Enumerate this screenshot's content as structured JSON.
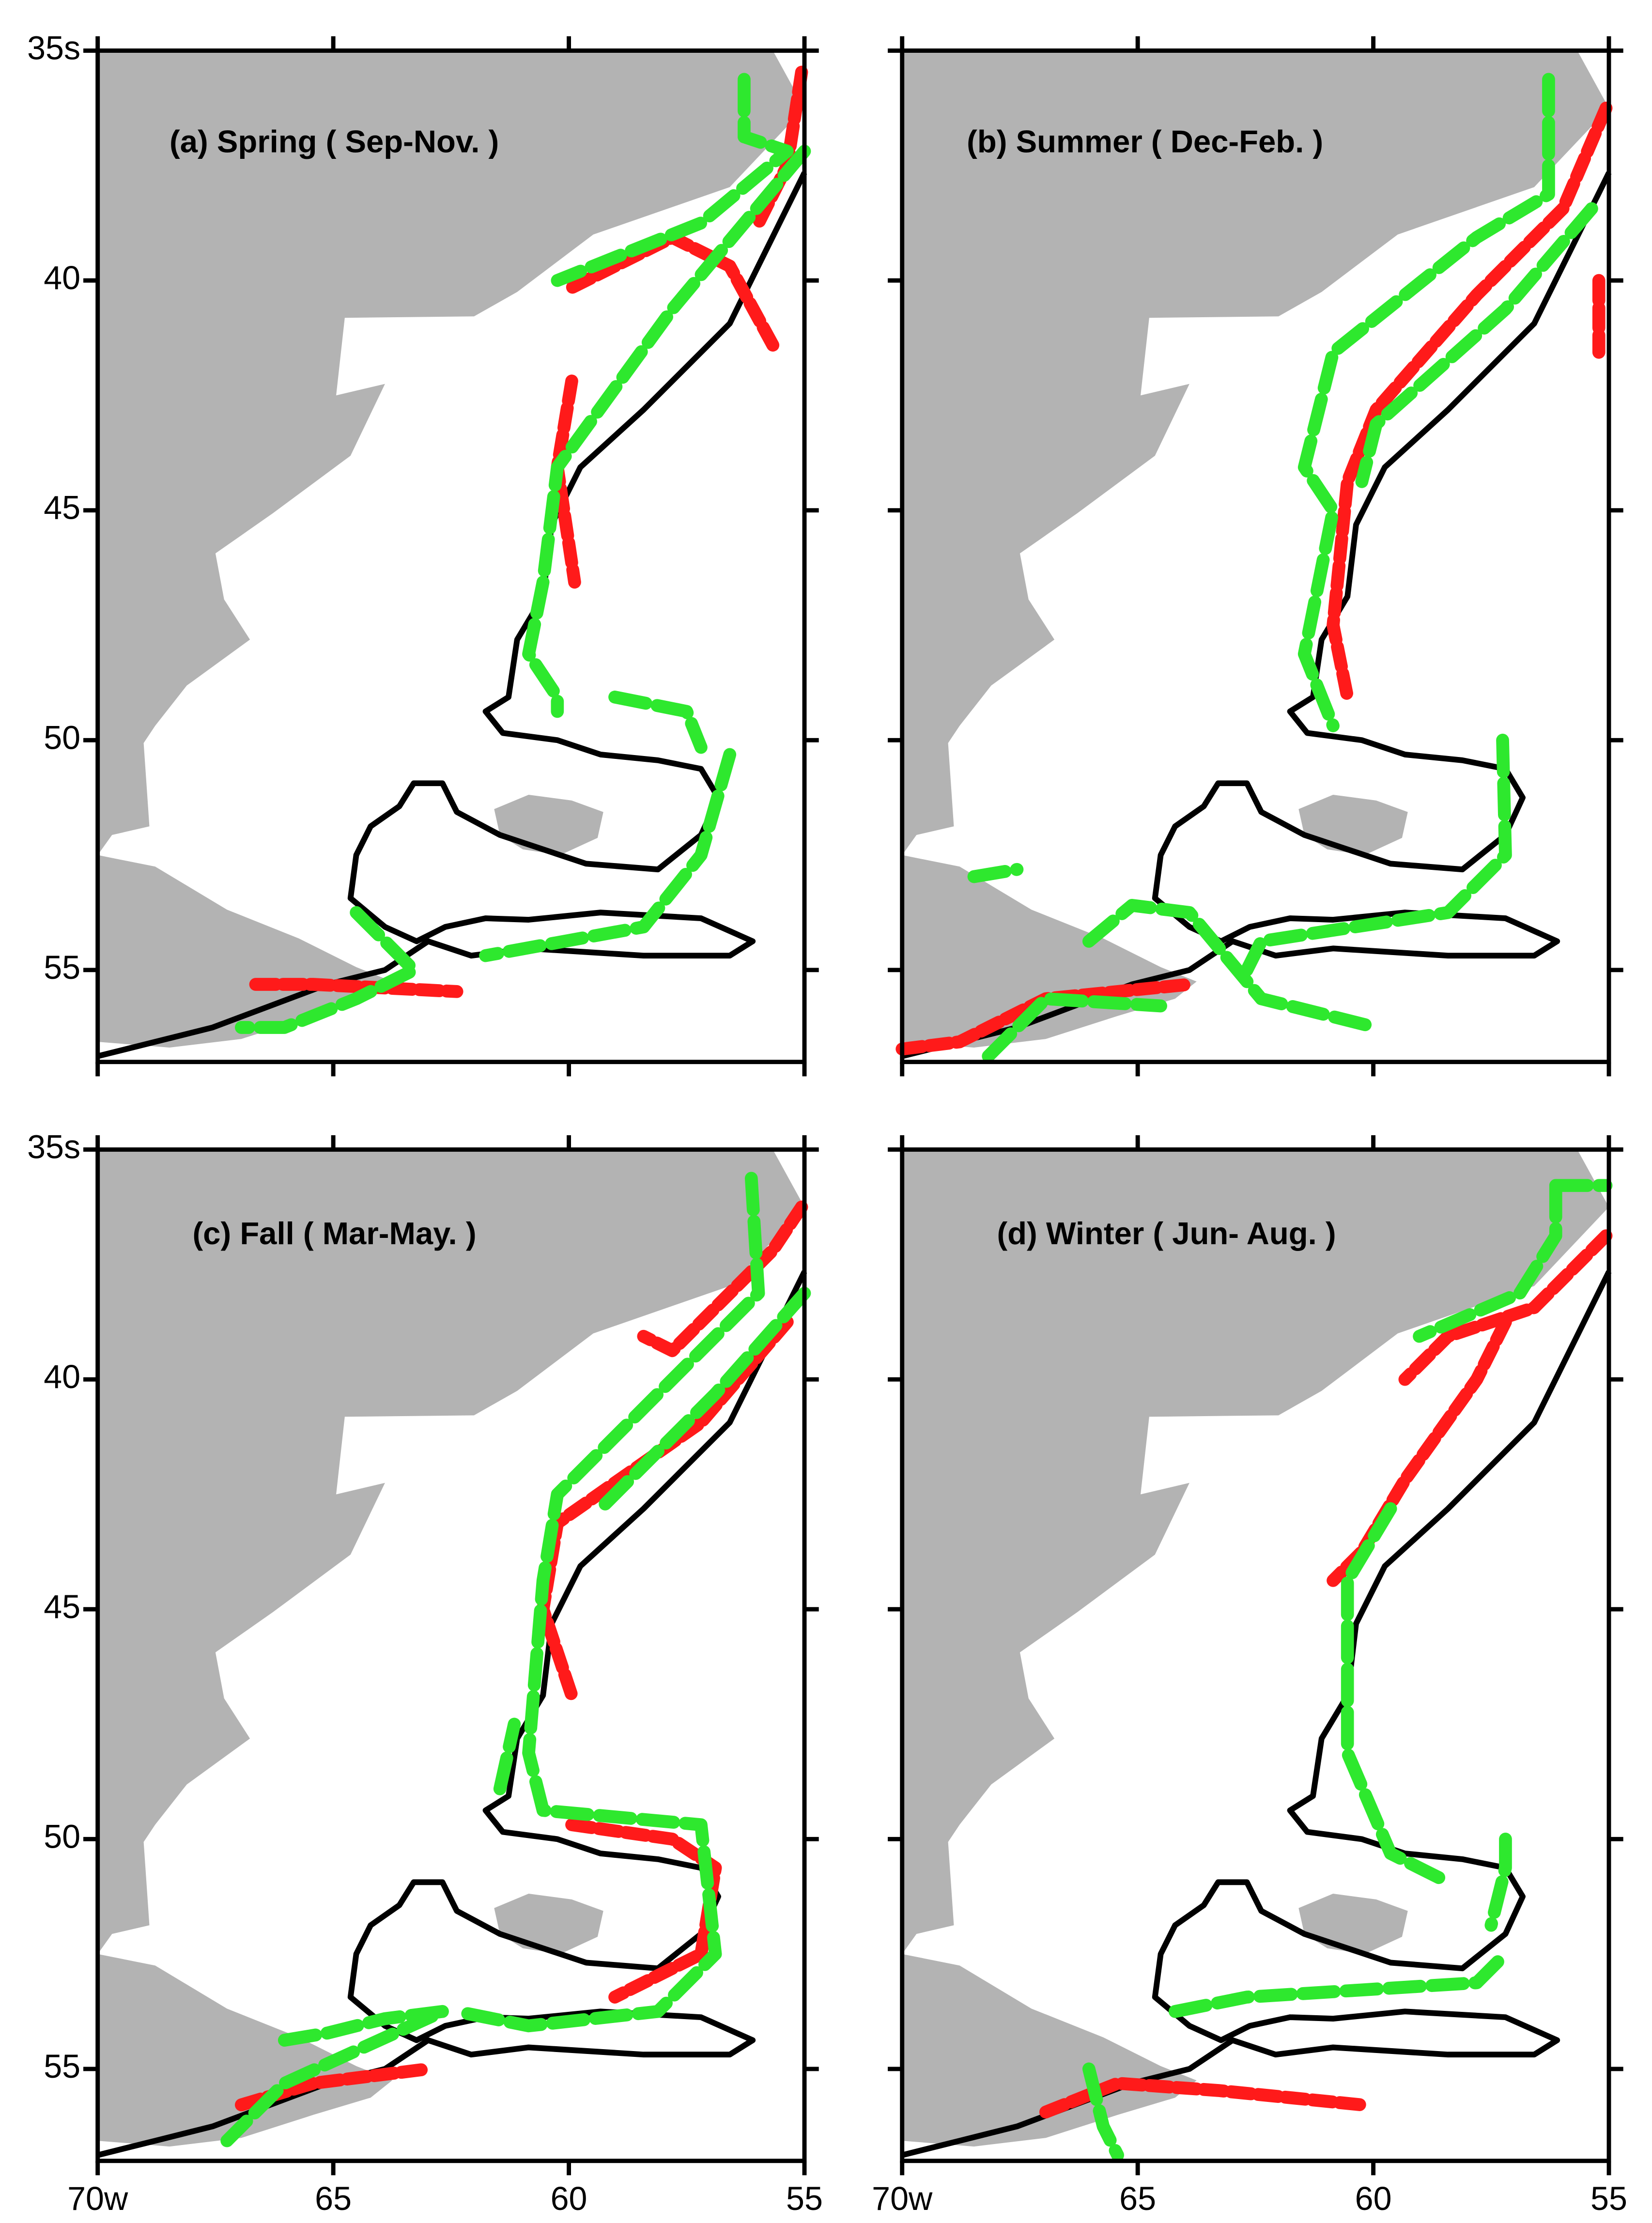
{
  "panels": [
    {
      "title": "(a)  Spring ( Sep-Nov. )"
    },
    {
      "title": "(b)  Summer ( Dec-Feb. )"
    },
    {
      "title": "(c)  Fall ( Mar-May. )"
    },
    {
      "title": "(d)  Winter ( Jun- Aug. )"
    }
  ],
  "map": {
    "xlim": [
      70,
      55
    ],
    "ylim": [
      35,
      57
    ],
    "xticks": [
      {
        "value": 70,
        "label": "70w"
      },
      65,
      60,
      55
    ],
    "yticks": [
      {
        "value": 35,
        "label": "35s"
      },
      40,
      45,
      50,
      55
    ]
  }
}
